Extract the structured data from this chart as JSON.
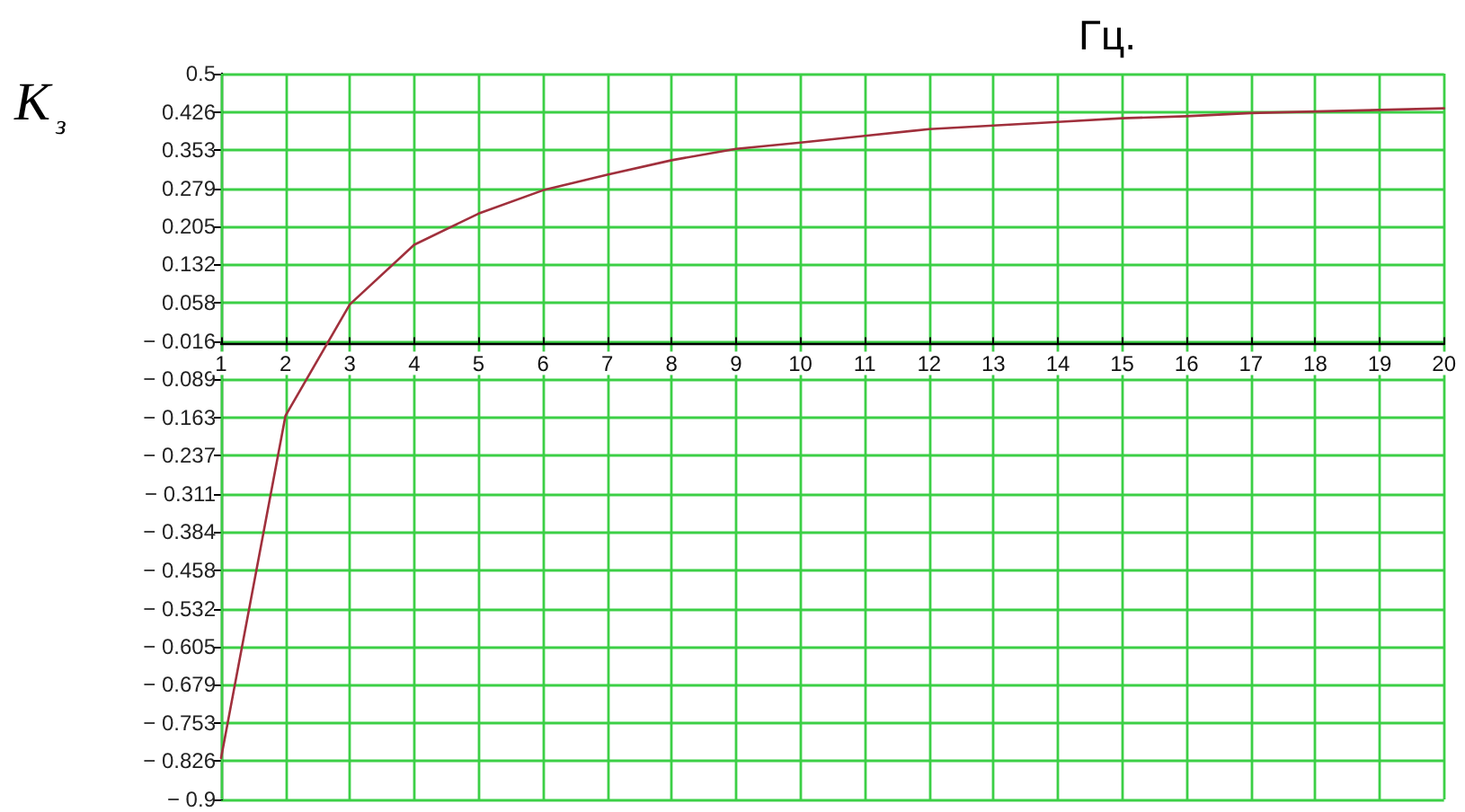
{
  "chart_data": {
    "type": "line",
    "xlabel": "Гц.",
    "ylabel": "K$_{з}$",
    "x": [
      1,
      2,
      3,
      4,
      5,
      6,
      7,
      8,
      9,
      10,
      11,
      12,
      13,
      14,
      15,
      16,
      17,
      18,
      19,
      20
    ],
    "values": [
      -0.82,
      -0.16,
      0.055,
      0.17,
      0.23,
      0.275,
      0.305,
      0.333,
      0.355,
      0.367,
      0.38,
      0.393,
      0.4,
      0.407,
      0.414,
      0.418,
      0.424,
      0.427,
      0.43,
      0.433
    ],
    "color": "#a0303c",
    "line_style": "solid",
    "grid": true,
    "xlim": [
      1,
      20
    ],
    "xticks": [
      1,
      2,
      3,
      4,
      5,
      6,
      7,
      8,
      9,
      10,
      11,
      12,
      13,
      14,
      15,
      16,
      17,
      18,
      19,
      20
    ],
    "ylim": [
      -0.9,
      0.5
    ],
    "yticks": [
      0.5,
      0.426,
      0.353,
      0.279,
      0.205,
      0.132,
      0.058,
      {
        "value": -0.016,
        "label": "− 0.016"
      },
      {
        "value": -0.089,
        "label": "− 0.089"
      },
      {
        "value": -0.163,
        "label": "− 0.163"
      },
      {
        "value": -0.237,
        "label": "− 0.237"
      },
      {
        "value": -0.311,
        "label": "− 0.311"
      },
      {
        "value": -0.384,
        "label": "− 0.384"
      },
      {
        "value": -0.458,
        "label": "− 0.458"
      },
      {
        "value": -0.532,
        "label": "− 0.532"
      },
      {
        "value": -0.605,
        "label": "− 0.605"
      },
      {
        "value": -0.679,
        "label": "− 0.679"
      },
      {
        "value": -0.753,
        "label": "− 0.753"
      },
      {
        "value": -0.826,
        "label": "− 0.826"
      },
      {
        "value": -0.9,
        "label": "− 0.9"
      }
    ]
  }
}
